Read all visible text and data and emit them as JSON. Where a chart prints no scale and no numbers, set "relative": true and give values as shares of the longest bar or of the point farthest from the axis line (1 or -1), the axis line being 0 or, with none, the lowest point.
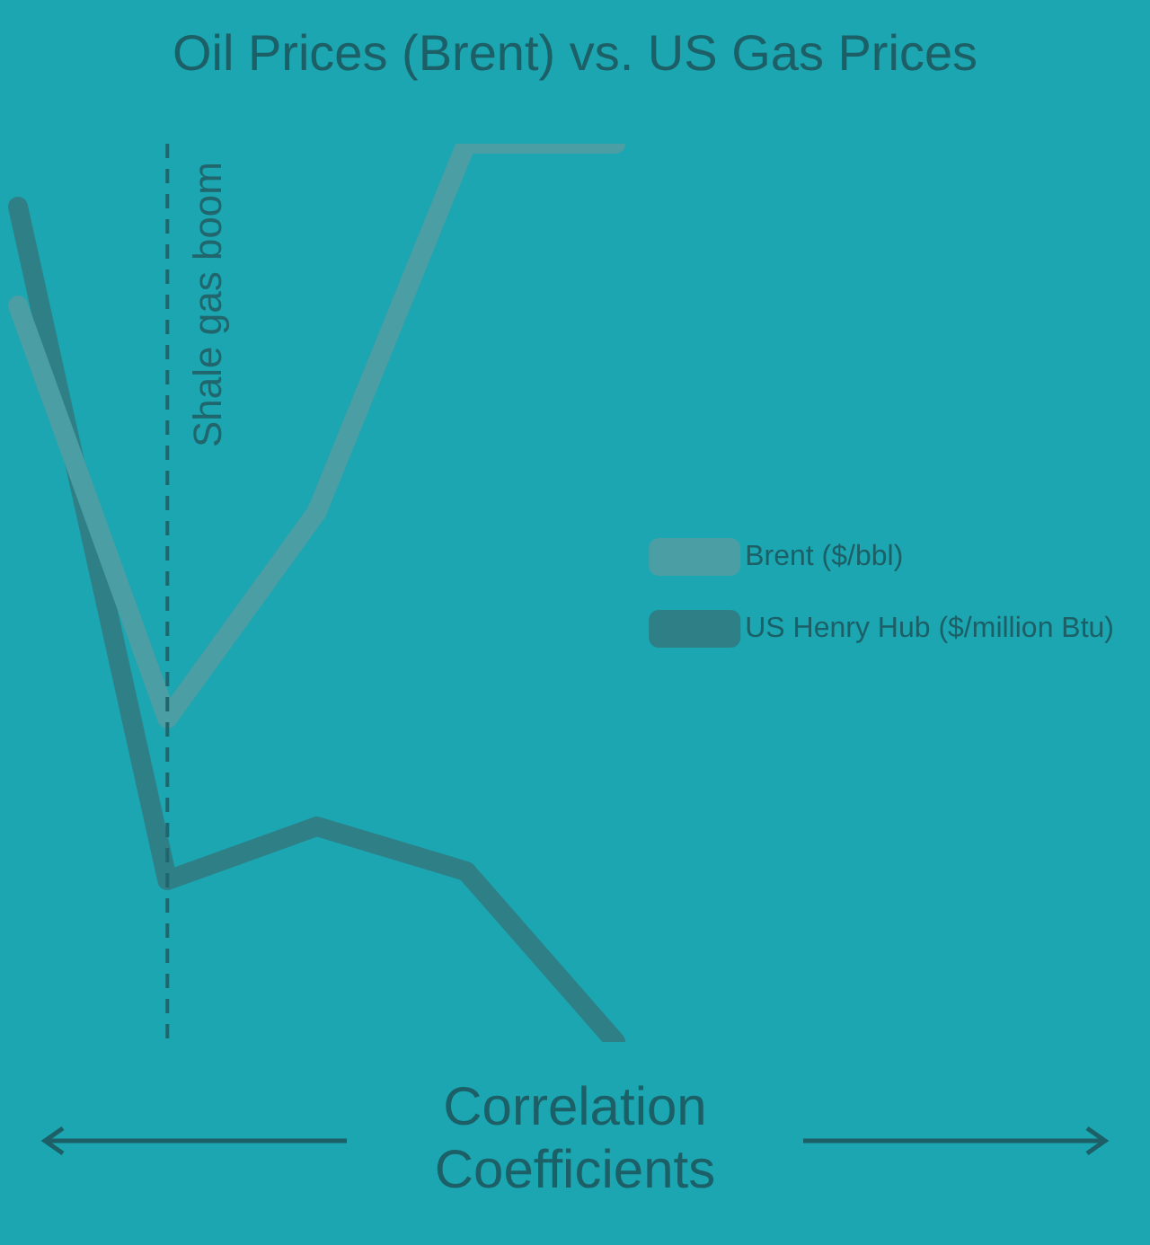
{
  "chart_data": {
    "type": "line",
    "title": "Oil Prices (Brent) vs. US Gas Prices",
    "relative": true,
    "categories": [
      null,
      null,
      null,
      null,
      null
    ],
    "series": [
      {
        "name": "Brent ($/bbl)",
        "color": "#4a9ea4",
        "values": [
          0.82,
          0.36,
          0.59,
          1.0,
          1.0
        ]
      },
      {
        "name": "US Henry Hub ($/million Btu)",
        "color": "#2f7f87",
        "values": [
          0.93,
          0.18,
          0.24,
          0.19,
          0
        ]
      }
    ],
    "legend": "right",
    "marker": "none",
    "line_style": "solid",
    "annotations": [
      "Shale gas boom",
      "Correlation Coefficients"
    ]
  }
}
